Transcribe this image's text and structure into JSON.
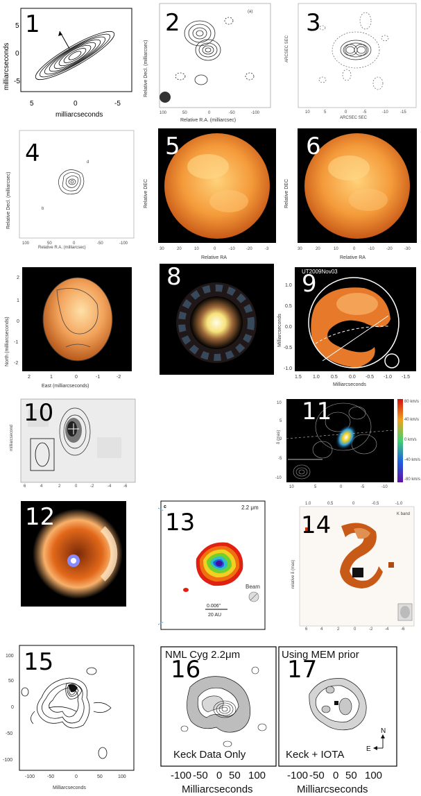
{
  "panels": [
    {
      "id": "1",
      "label": "1",
      "xlabel": "milliarcseconds",
      "ylabel": "milliarcseconds",
      "xticks": [
        "5",
        "0",
        "-5"
      ],
      "yticks": [
        "5",
        "0",
        "-5"
      ]
    },
    {
      "id": "2",
      "label": "2",
      "tag": "(a)",
      "xlabel": "Relative R.A. (milliarcsec)",
      "ylabel": "Relative Decl. (milliarcsec)",
      "xticks": [
        "100",
        "50",
        "0",
        "-50",
        "-100"
      ],
      "yticks": [
        "100",
        "50",
        "0",
        "-50",
        "-100"
      ]
    },
    {
      "id": "3",
      "label": "3",
      "xlabel": "ARCSEC SEC",
      "ylabel": "ARCSEC SEC",
      "xticks": [
        "10",
        "5",
        "0",
        "-5",
        "-10",
        "-15"
      ],
      "yticks": [
        "20",
        "15",
        "10",
        "5",
        "0",
        "-5",
        "-10",
        "-15",
        "-20"
      ]
    },
    {
      "id": "4",
      "label": "4",
      "xlabel": "Relative R.A. (milliarcsec)",
      "ylabel": "Relative Decl. (milliarcsec)",
      "xticks": [
        "100",
        "50",
        "0",
        "-50",
        "-100"
      ],
      "yticks": [
        "100",
        "50",
        "0",
        "-50",
        "-100"
      ],
      "marks": [
        "d",
        "b"
      ]
    },
    {
      "id": "5",
      "label": "5",
      "xlabel": "Relative RA",
      "ylabel": "Relative DEC",
      "xticks": [
        "30",
        "20",
        "10",
        "0",
        "-10",
        "-20",
        "-3"
      ],
      "yticks": [
        "30",
        "20",
        "10",
        "0",
        "-10",
        "-20",
        "-30"
      ]
    },
    {
      "id": "6",
      "label": "6",
      "xlabel": "Relative RA",
      "ylabel": "Relative DEC",
      "xticks": [
        "30",
        "20",
        "10",
        "0",
        "-10",
        "-20",
        "-30"
      ],
      "yticks": [
        "30",
        "20",
        "10",
        "0",
        "-10",
        "-20",
        "-30"
      ]
    },
    {
      "id": "7",
      "label": "7",
      "xlabel": "East (milliarcseconds)",
      "ylabel": "North (milliarcseconds)",
      "xticks": [
        "2",
        "1",
        "0",
        "-1",
        "-2"
      ],
      "yticks": [
        "2",
        "1",
        "0",
        "-1",
        "-2"
      ]
    },
    {
      "id": "8",
      "label": "8"
    },
    {
      "id": "9",
      "label": "9",
      "title": "UT2009Nov03",
      "xlabel": "Milliarcseconds",
      "ylabel": "Milliarcseconds",
      "xticks": [
        "1.5",
        "1.0",
        "0.5",
        "0.0",
        "-0.5",
        "-1.0",
        "-1.5"
      ],
      "yticks": [
        "1.0",
        "0.5",
        "0.0",
        "-0.5",
        "-1.0"
      ]
    },
    {
      "id": "10",
      "label": "10",
      "xlabel": "milliarcsecond",
      "ylabel": "milliarcsecond",
      "xticks": [
        "6",
        "4",
        "2",
        "0",
        "-2",
        "-4",
        "-6"
      ],
      "yticks": [
        "6",
        "4",
        "2",
        "0",
        "-2",
        "-4",
        "-6"
      ]
    },
    {
      "id": "11",
      "label": "11",
      "ylabel": "δ (mas)",
      "xticks": [
        "10",
        "5",
        "0",
        "-5",
        "-10"
      ],
      "yticks": [
        "10",
        "5",
        "0",
        "-5",
        "-10"
      ],
      "colorbar": [
        "80 km/s",
        "40 km/s",
        "0 km/s",
        "-40 km/s",
        "-80 km/s"
      ]
    },
    {
      "id": "12",
      "label": "12"
    },
    {
      "id": "13",
      "label": "13",
      "tag": "c",
      "band": "2.2 μm",
      "beam": "Beam",
      "scale1": "0.006\"",
      "scale2": "20 AU"
    },
    {
      "id": "14",
      "label": "14",
      "band": "K band",
      "ylabel": "relative δ (mas)",
      "xticks": [
        "1.0",
        "0.5",
        "0",
        "-0.5",
        "-1.0"
      ],
      "xticks_bottom": [
        "6",
        "4",
        "2",
        "0",
        "-2",
        "-4",
        "-6"
      ]
    },
    {
      "id": "15",
      "label": "15",
      "xlabel": "Milliarcseconds",
      "xticks": [
        "-100",
        "-50",
        "0",
        "50",
        "100"
      ],
      "yticks": [
        "100",
        "50",
        "0",
        "-50",
        "-100"
      ]
    },
    {
      "id": "16",
      "label": "16",
      "title": "NML Cyg 2.2μm",
      "caption": "Keck Data Only",
      "xlabel": "Milliarcseconds",
      "xticks": [
        "-100",
        "-50",
        "0",
        "50",
        "100"
      ]
    },
    {
      "id": "17",
      "label": "17",
      "title": "Using MEM prior",
      "caption": "Keck + IOTA",
      "xlabel": "Milliarcseconds",
      "xticks": [
        "-100",
        "-50",
        "0",
        "50",
        "100"
      ],
      "compass_n": "N",
      "compass_e": "E"
    }
  ],
  "colors": {
    "orange_disk": "#f4a04a",
    "dark_bg": "#000000",
    "contour": "#111111"
  }
}
